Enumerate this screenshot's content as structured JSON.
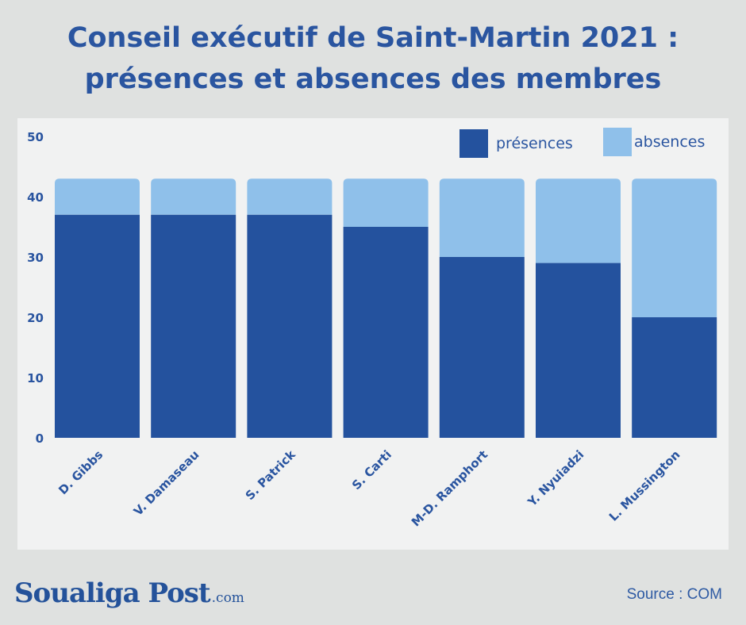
{
  "title_line1": "Conseil exécutif de Saint-Martin 2021 :",
  "title_line2": "présences et absences des membres",
  "source": "Source : COM",
  "logo": {
    "main": "Soualiga Post",
    "suffix": ".com"
  },
  "colors": {
    "presences": "#24529e",
    "absences": "#8fc0ea",
    "title": "#2a55a0",
    "panel": "#f1f2f2",
    "background": "#dfe1e0"
  },
  "chart_data": {
    "type": "bar",
    "stacked": true,
    "categories": [
      "D. Gibbs",
      "V. Damaseau",
      "S. Patrick",
      "S. Carti",
      "M-D. Ramphort",
      "Y. Nyuiadzi",
      "L. Mussington"
    ],
    "series": [
      {
        "name": "présences",
        "values": [
          37,
          37,
          37,
          35,
          30,
          29,
          20
        ]
      },
      {
        "name": "absences",
        "values": [
          6,
          6,
          6,
          8,
          13,
          14,
          23
        ]
      }
    ],
    "ylim": [
      0,
      50
    ],
    "yticks": [
      "0",
      "10",
      "20",
      "30",
      "40",
      "50"
    ],
    "xlabel": "",
    "ylabel": "",
    "legend_position": "top-right",
    "grid": false
  }
}
